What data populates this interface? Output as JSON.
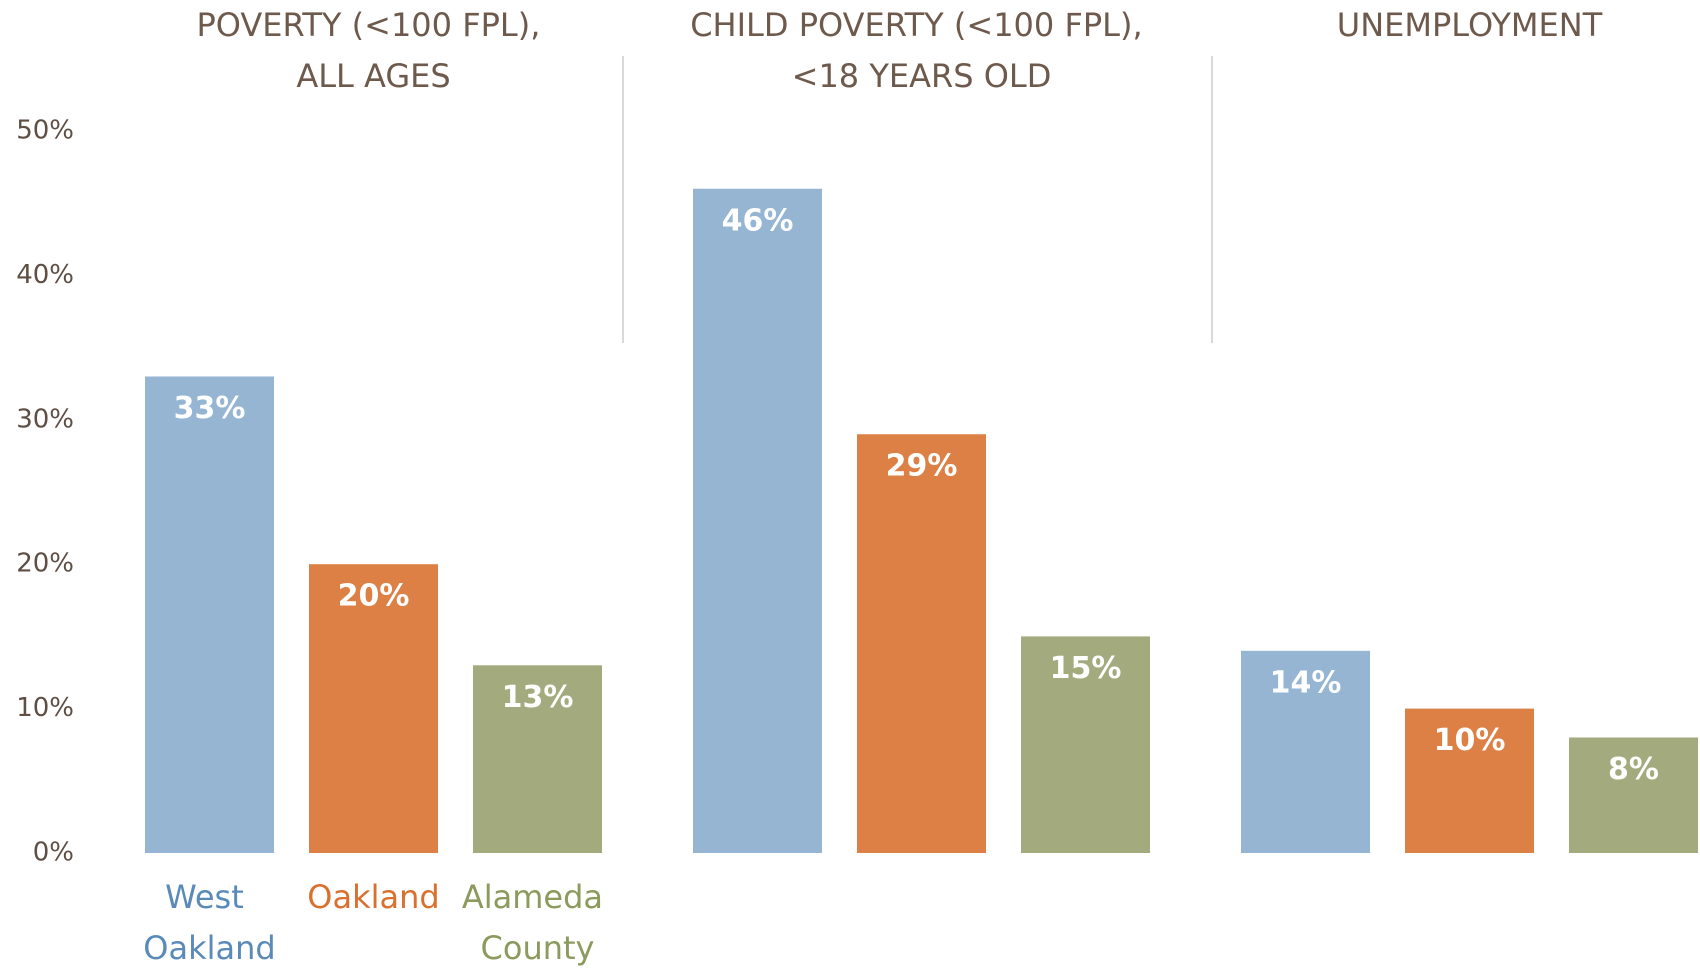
{
  "chart_data": {
    "type": "bar",
    "categories": [
      "POVERTY (<100 FPL), ALL AGES",
      "CHILD POVERTY (<100 FPL), <18 YEARS OLD",
      "UNEMPLOYMENT"
    ],
    "series": [
      {
        "name": "West Oakland",
        "color": "#95b5d3",
        "label_color": "#5a8ab8",
        "values": [
          33,
          46,
          14
        ],
        "value_labels": [
          "33%",
          "46%",
          "14%"
        ]
      },
      {
        "name": "Oakland",
        "color": "#dd8046",
        "label_color": "#d9702e",
        "values": [
          20,
          29,
          10
        ],
        "value_labels": [
          "20%",
          "29%",
          "10%"
        ]
      },
      {
        "name": "Alameda County",
        "color": "#a3ab7e",
        "label_color": "#8c9a5e",
        "values": [
          13,
          15,
          8
        ],
        "value_labels": [
          "13%",
          "15%",
          "8%"
        ]
      }
    ],
    "ylim": [
      0,
      50
    ],
    "yticks": [
      {
        "value": 0,
        "label": "0%"
      },
      {
        "value": 10,
        "label": "10%"
      },
      {
        "value": 20,
        "label": "20%"
      },
      {
        "value": 30,
        "label": "30%"
      },
      {
        "value": 40,
        "label": "40%"
      },
      {
        "value": 50,
        "label": "50%"
      }
    ],
    "grid": false
  }
}
